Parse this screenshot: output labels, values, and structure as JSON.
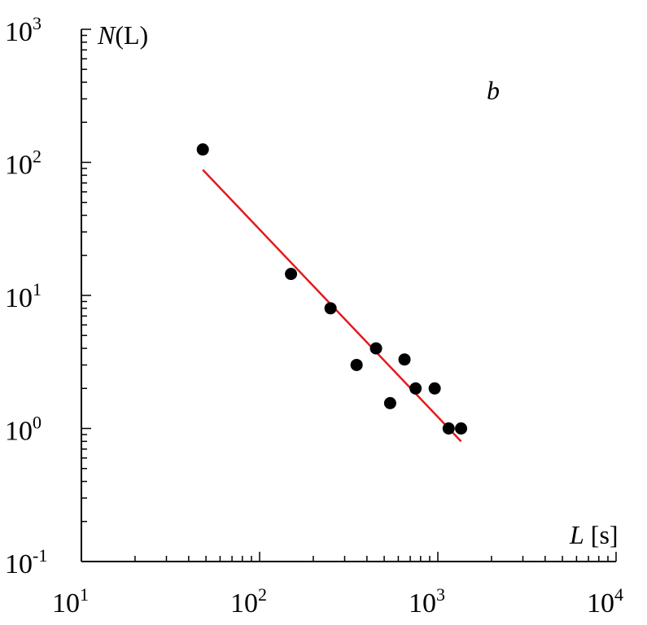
{
  "chart_data": {
    "type": "scatter",
    "xscale": "log",
    "yscale": "log",
    "xlim": [
      10,
      10000
    ],
    "ylim": [
      0.1,
      1000
    ],
    "x_ticks": [
      {
        "base": "10",
        "exp": "1",
        "value": 10
      },
      {
        "base": "10",
        "exp": "2",
        "value": 100
      },
      {
        "base": "10",
        "exp": "3",
        "value": 1000
      },
      {
        "base": "10",
        "exp": "4",
        "value": 10000
      }
    ],
    "y_ticks": [
      {
        "base": "10",
        "exp": "-1",
        "value": 0.1
      },
      {
        "base": "10",
        "exp": "0",
        "value": 1
      },
      {
        "base": "10",
        "exp": "1",
        "value": 10
      },
      {
        "base": "10",
        "exp": "2",
        "value": 100
      },
      {
        "base": "10",
        "exp": "3",
        "value": 1000
      }
    ],
    "xlabel": {
      "italic": "L",
      "rest": " [s]"
    },
    "ylabel": {
      "italic": "N",
      "rest": "(L)"
    },
    "panel_label": "b",
    "series": [
      {
        "kind": "points",
        "color": "#000000",
        "points": [
          {
            "x": 48,
            "y": 125
          },
          {
            "x": 150,
            "y": 14.5
          },
          {
            "x": 250,
            "y": 8
          },
          {
            "x": 350,
            "y": 3
          },
          {
            "x": 450,
            "y": 4
          },
          {
            "x": 540,
            "y": 1.55
          },
          {
            "x": 650,
            "y": 3.3
          },
          {
            "x": 750,
            "y": 2
          },
          {
            "x": 960,
            "y": 2
          },
          {
            "x": 1150,
            "y": 1
          },
          {
            "x": 1350,
            "y": 1
          }
        ]
      },
      {
        "kind": "fit-line",
        "color": "#e41a1c",
        "points": [
          {
            "x": 48,
            "y": 88
          },
          {
            "x": 1350,
            "y": 0.8
          }
        ]
      }
    ]
  }
}
